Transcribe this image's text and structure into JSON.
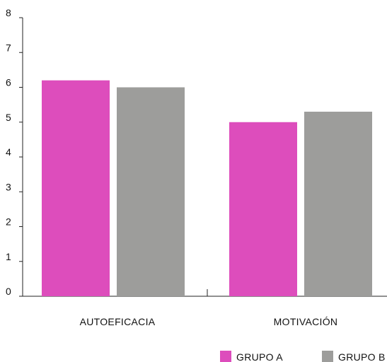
{
  "chart_data": {
    "type": "bar",
    "categories": [
      "AUTOEFICACIA",
      "MOTIVACIÓN"
    ],
    "series": [
      {
        "name": "GRUPO A",
        "values": [
          6.2,
          5.0
        ],
        "color": "#dd4dbc"
      },
      {
        "name": "GRUPO B",
        "values": [
          6.0,
          5.3
        ],
        "color": "#9d9d9b"
      }
    ],
    "yticks": [
      "0",
      "1",
      "2",
      "3",
      "4",
      "5",
      "6",
      "7",
      "8"
    ],
    "ylim": [
      0,
      8
    ],
    "grid": false,
    "legend_position": "bottom-right"
  }
}
